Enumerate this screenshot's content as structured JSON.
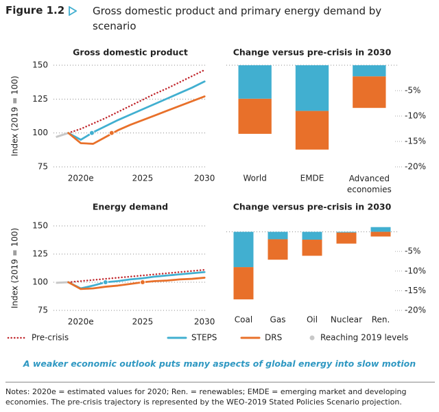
{
  "figure_label": "Figure 1.2",
  "title": "Gross domestic product and primary energy demand by scenario",
  "legend_marker": {
    "name": "Reaching 2019 levels",
    "color": "#c8c8c8"
  },
  "caption": "A weaker economic outlook puts many aspects of global energy into slow motion",
  "notes": "Notes: 2020e = estimated values for 2020; Ren. = renewables; EMDE = emerging market and developing economies. The pre-crisis trajectory is represented by the WEO-2019 Stated Policies Scenario projection.",
  "chart_data": [
    {
      "type": "line",
      "title": "Gross domestic product",
      "y_label": "Index (2019 = 100)",
      "x": [
        2019,
        2020,
        2021,
        2022,
        2023,
        2024,
        2025,
        2026,
        2027,
        2028,
        2029,
        2030
      ],
      "xlim": [
        2017.8,
        2030.1
      ],
      "xticks": [
        {
          "value": 2020,
          "label": "2020e"
        },
        2025,
        2030
      ],
      "ylim": [
        75,
        150
      ],
      "yticks": [
        75,
        100,
        125,
        150
      ],
      "grid": true,
      "history": {
        "color": "#c8c8c8",
        "x": [
          2018,
          2019
        ],
        "values": [
          97,
          100
        ]
      },
      "series": [
        {
          "name": "Pre-crisis",
          "color": "#c0272d",
          "dash": "dotted",
          "values": [
            100,
            103,
            107,
            111,
            115.5,
            120,
            124.5,
            129,
            133,
            137.5,
            142,
            146.5
          ]
        },
        {
          "name": "STEPS",
          "color": "#41afd0",
          "values": [
            100,
            95,
            100.5,
            105,
            109.5,
            113.5,
            117.5,
            121.5,
            125.5,
            129.5,
            133.5,
            138
          ],
          "reach": {
            "x": 2020.9,
            "y": 100
          }
        },
        {
          "name": "DRS",
          "color": "#e8702a",
          "values": [
            100,
            92.5,
            92,
            97,
            102,
            106,
            109.5,
            113,
            116.5,
            120,
            123.5,
            127
          ],
          "reach": {
            "x": 2022.5,
            "y": 100
          }
        }
      ]
    },
    {
      "type": "bar",
      "title": "Change versus pre-crisis in 2030",
      "categories": [
        "World",
        "EMDE",
        "Advanced economies"
      ],
      "ylim": [
        -20,
        0
      ],
      "yticks": [
        {
          "value": -5,
          "label": "-5%"
        },
        {
          "value": -10,
          "label": "-10%"
        },
        {
          "value": -15,
          "label": "-15%"
        },
        {
          "value": -20,
          "label": "-20%"
        }
      ],
      "y_axis_side": "right",
      "grid": true,
      "stacked": true,
      "series": [
        {
          "color": "#41afd0",
          "values": [
            -6.6,
            -9,
            -2.2
          ]
        },
        {
          "color": "#e8702a",
          "values": [
            -6.9,
            -7.6,
            -6.2
          ]
        }
      ]
    },
    {
      "type": "line",
      "title": "Energy demand",
      "y_label": "Index (2019 = 100)",
      "x": [
        2019,
        2020,
        2021,
        2022,
        2023,
        2024,
        2025,
        2026,
        2027,
        2028,
        2029,
        2030
      ],
      "xlim": [
        2017.8,
        2030.1
      ],
      "xticks": [
        {
          "value": 2020,
          "label": "2020e"
        },
        2025,
        2030
      ],
      "ylim": [
        75,
        150
      ],
      "yticks": [
        75,
        100,
        125,
        150
      ],
      "grid": true,
      "history": {
        "color": "#c8c8c8",
        "x": [
          2018,
          2019
        ],
        "values": [
          99.5,
          100
        ]
      },
      "series": [
        {
          "name": "Pre-crisis",
          "color": "#c0272d",
          "dash": "dotted",
          "values": [
            100,
            101,
            102,
            103,
            104,
            105,
            106,
            107,
            108,
            109,
            110,
            111
          ]
        },
        {
          "name": "STEPS",
          "color": "#41afd0",
          "values": [
            100,
            94.5,
            97,
            100,
            101,
            102.5,
            103.5,
            105,
            106,
            107,
            108,
            109
          ],
          "reach": {
            "x": 2022,
            "y": 100
          }
        },
        {
          "name": "DRS",
          "color": "#e8702a",
          "values": [
            100,
            94,
            94.5,
            96,
            97,
            98.5,
            100,
            101,
            101.5,
            102.5,
            103,
            104
          ],
          "reach": {
            "x": 2025,
            "y": 100
          }
        }
      ]
    },
    {
      "type": "bar",
      "title": "Change versus pre-crisis in 2030",
      "categories": [
        "Coal",
        "Gas",
        "Oil",
        "Nuclear",
        "Ren."
      ],
      "ylim": [
        -20,
        1.5
      ],
      "yticks": [
        {
          "value": -5,
          "label": "-5%"
        },
        {
          "value": -10,
          "label": "-10%"
        },
        {
          "value": -15,
          "label": "-15%"
        },
        {
          "value": -20,
          "label": "-20%"
        }
      ],
      "y_axis_side": "right",
      "grid": true,
      "stacked": true,
      "series": [
        {
          "color": "#41afd0",
          "values": [
            -9,
            -1.9,
            -2,
            -0.2,
            1.2
          ]
        },
        {
          "color": "#e8702a",
          "values": [
            -8.2,
            -5.2,
            -4.1,
            -2.8,
            -1.2
          ]
        }
      ]
    }
  ]
}
